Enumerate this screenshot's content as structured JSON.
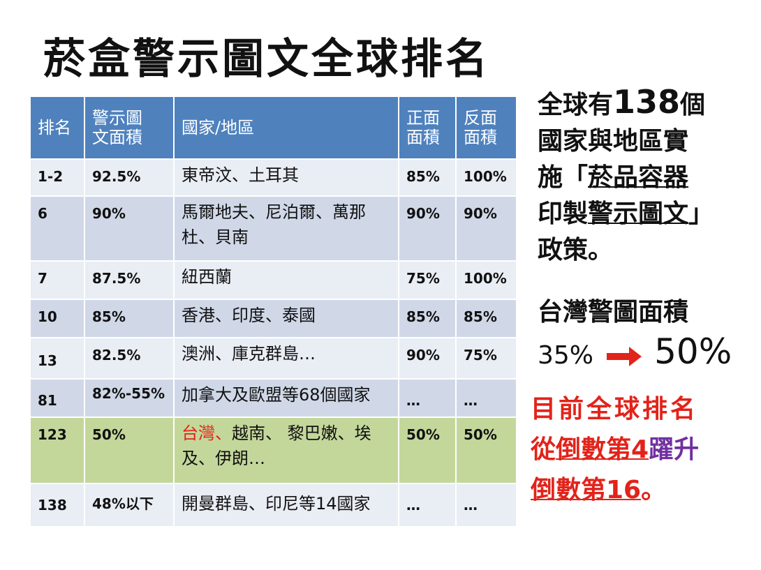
{
  "title": "菸盒警示圖文全球排名",
  "table": {
    "headers": [
      "排名",
      "警示圖文面積",
      "國家/地區",
      "正面面積",
      "反面面積"
    ],
    "header_lines": {
      "area": [
        "警示圖",
        "文面積"
      ],
      "front": [
        "正面",
        "面積"
      ],
      "back": [
        "反面",
        "面積"
      ]
    },
    "rows": [
      {
        "rank": "1-2",
        "area": "92.5%",
        "country": "東帝汶、土耳其",
        "front": "85%",
        "back": "100%"
      },
      {
        "rank": "6",
        "area": "90%",
        "country": "馬爾地夫、尼泊爾、萬那杜、貝南",
        "front": "90%",
        "back": "90%"
      },
      {
        "rank": "7",
        "area": "87.5%",
        "country": "紐西蘭",
        "front": "75%",
        "back": "100%"
      },
      {
        "rank": "10",
        "area": "85%",
        "country": "香港、印度、泰國",
        "front": "85%",
        "back": "85%"
      },
      {
        "rank": "13",
        "area": "82.5%",
        "country": "澳洲、庫克群島…",
        "front": "90%",
        "back": "75%"
      },
      {
        "rank": "81",
        "area": "82%-55%",
        "country": "加拿大及歐盟等68個國家",
        "front": "…",
        "back": "…"
      },
      {
        "rank": "123",
        "area": "50%",
        "country_highlight": "台灣、",
        "country": "越南、 黎巴嫩、埃及、伊朗…",
        "front": "50%",
        "back": "50%"
      },
      {
        "rank": "138",
        "area": "48%以下",
        "country": "開曼群島、印尼等14國家",
        "front": "…",
        "back": "…"
      }
    ]
  },
  "side": {
    "line1_prefix": "全球有",
    "line1_number": "138",
    "line1_suffix": "個",
    "line2": "國家與地區實",
    "line3_prefix": "施「",
    "line3_underlined": "菸品容器",
    "line4_prefix": "印製",
    "line4_underlined": "警示圖文",
    "line4_suffix": "」",
    "line5": "政策。",
    "taiwan_label": "台灣警圖面積",
    "taiwan_from": "35%",
    "taiwan_to": "50%",
    "rank_line1": "目前全球排名",
    "rank_line2_prefix": "從",
    "rank_line2_underlined": "倒數第4",
    "rank_line2_purple": "躍升",
    "rank_line3_underlined": "倒數第16",
    "rank_line3_suffix": "。"
  },
  "colors": {
    "header": "#4f81bd",
    "row_light": "#e9edf4",
    "row_dark": "#d0d8e8",
    "highlight": "#c4d79b",
    "red": "#e2231a",
    "purple": "#7030a0"
  }
}
